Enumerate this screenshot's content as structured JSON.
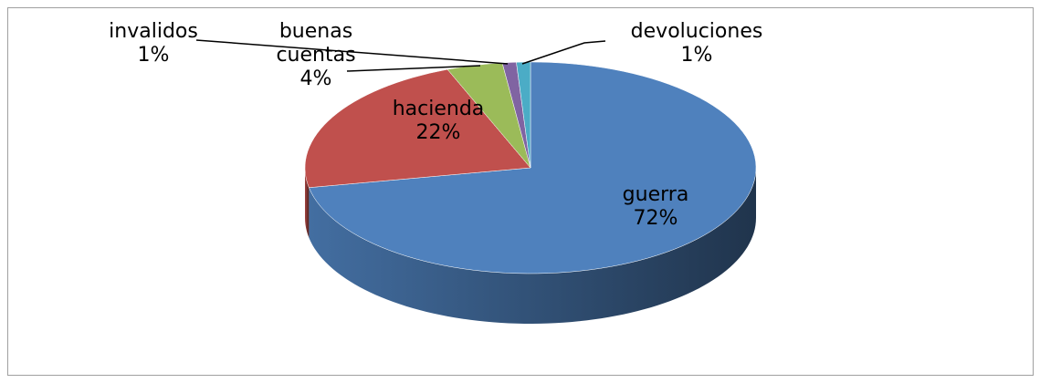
{
  "chart_data": {
    "type": "pie",
    "categories": [
      "guerra",
      "hacienda",
      "buenas cuentas",
      "invalidos",
      "devoluciones"
    ],
    "values": [
      72,
      22,
      4,
      1,
      1
    ],
    "value_labels": [
      "72%",
      "22%",
      "4%",
      "1%",
      "1%"
    ],
    "colors": [
      "#4f81bd",
      "#c0504d",
      "#9bbb59",
      "#8064a2",
      "#4bacc6"
    ]
  }
}
